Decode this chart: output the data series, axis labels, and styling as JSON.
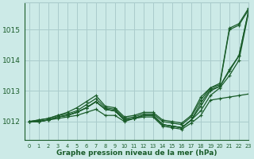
{
  "title": "Graphe pression niveau de la mer (hPa)",
  "background_color": "#cceae7",
  "grid_color": "#aacccc",
  "line_color": "#1a5c2a",
  "xlim": [
    -0.5,
    23
  ],
  "ylim": [
    1011.4,
    1015.9
  ],
  "yticks": [
    1012,
    1013,
    1014,
    1015
  ],
  "xticks": [
    0,
    1,
    2,
    3,
    4,
    5,
    6,
    7,
    8,
    9,
    10,
    11,
    12,
    13,
    14,
    15,
    16,
    17,
    18,
    19,
    20,
    21,
    22,
    23
  ],
  "series": [
    [
      1012.0,
      1012.0,
      1012.05,
      1012.1,
      1012.15,
      1012.2,
      1012.3,
      1012.4,
      1012.2,
      1012.2,
      1012.0,
      1012.1,
      1012.15,
      1012.15,
      1011.85,
      1011.8,
      1011.75,
      1011.95,
      1012.2,
      1012.7,
      1012.75,
      1012.8,
      1012.85,
      1012.9
    ],
    [
      1012.0,
      1012.0,
      1012.05,
      1012.15,
      1012.2,
      1012.3,
      1012.45,
      1012.65,
      1012.4,
      1012.35,
      1012.05,
      1012.1,
      1012.2,
      1012.2,
      1011.9,
      1011.85,
      1011.8,
      1012.05,
      1012.35,
      1012.85,
      1013.1,
      1013.5,
      1014.0,
      1015.55
    ],
    [
      1012.0,
      1012.0,
      1012.05,
      1012.15,
      1012.2,
      1012.3,
      1012.45,
      1012.65,
      1012.4,
      1012.35,
      1012.05,
      1012.1,
      1012.2,
      1012.2,
      1011.9,
      1011.85,
      1011.8,
      1012.05,
      1012.5,
      1013.0,
      1013.15,
      1013.65,
      1014.15,
      1015.6
    ],
    [
      1012.0,
      1012.0,
      1012.05,
      1012.15,
      1012.2,
      1012.3,
      1012.45,
      1012.65,
      1012.4,
      1012.35,
      1012.05,
      1012.1,
      1012.2,
      1012.2,
      1011.9,
      1011.85,
      1011.8,
      1012.05,
      1012.6,
      1013.05,
      1013.15,
      1013.7,
      1014.15,
      1015.6
    ],
    [
      1012.0,
      1012.05,
      1012.1,
      1012.2,
      1012.25,
      1012.35,
      1012.55,
      1012.75,
      1012.45,
      1012.4,
      1012.1,
      1012.15,
      1012.25,
      1012.25,
      1012.0,
      1011.95,
      1011.9,
      1012.15,
      1012.7,
      1013.1,
      1013.2,
      1015.0,
      1015.15,
      1015.65
    ]
  ],
  "series_big": [
    1012.0,
    1012.05,
    1012.1,
    1012.2,
    1012.3,
    1012.45,
    1012.65,
    1012.85,
    1012.5,
    1012.45,
    1012.15,
    1012.2,
    1012.3,
    1012.3,
    1012.05,
    1012.0,
    1011.95,
    1012.2,
    1012.8,
    1013.1,
    1013.25,
    1015.05,
    1015.2,
    1015.7
  ]
}
